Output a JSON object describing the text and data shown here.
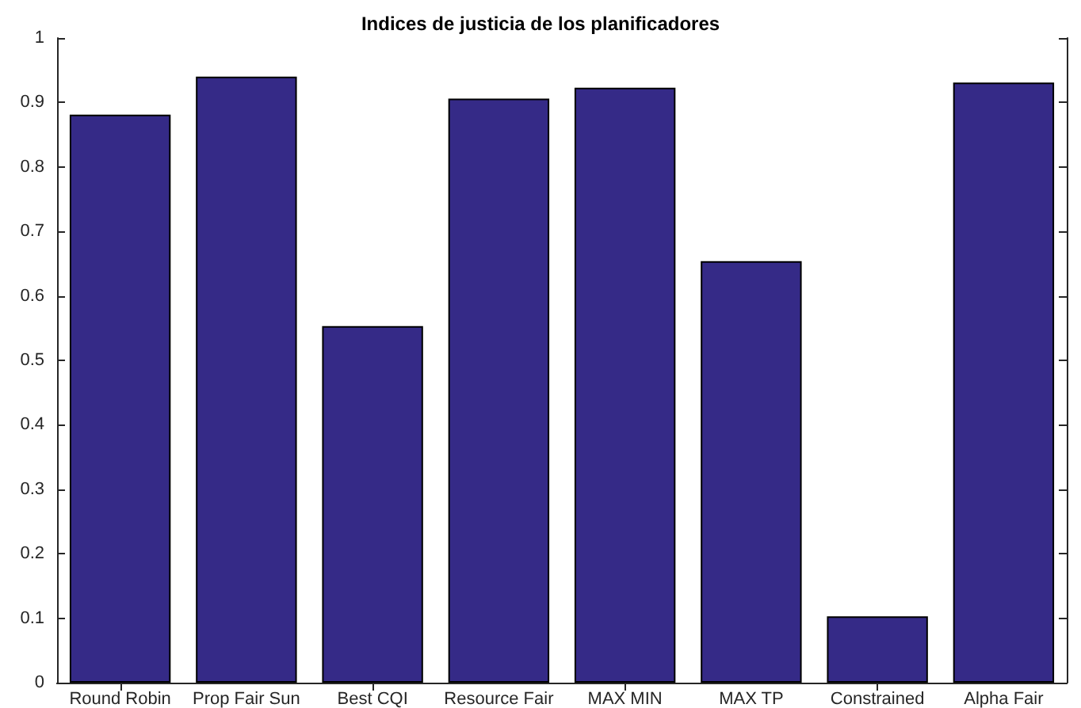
{
  "chart_data": {
    "type": "bar",
    "title": "Indices de justicia de los planificadores",
    "categories": [
      "Round Robin",
      "Prop Fair Sun",
      "Best CQI",
      "Resource Fair",
      "MAX MIN",
      "MAX TP",
      "Constrained",
      "Alpha Fair"
    ],
    "values": [
      0.881,
      0.94,
      0.553,
      0.906,
      0.923,
      0.654,
      0.103,
      0.931
    ],
    "color": "#352a87",
    "ylim": [
      0,
      1
    ],
    "yticks": [
      0,
      0.1,
      0.2,
      0.3,
      0.4,
      0.5,
      0.6,
      0.7,
      0.8,
      0.9,
      1
    ],
    "grid": false
  }
}
